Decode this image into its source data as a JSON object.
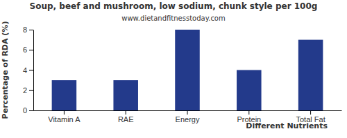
{
  "chart_data": {
    "type": "bar",
    "title": "Soup, beef and mushroom, low sodium, chunk style per 100g",
    "subtitle": "www.dietandfitnesstoday.com",
    "y_label": "Percentage of RDA (%)",
    "x_label": "Different Nutrients",
    "categories": [
      "Vitamin A",
      "RAE",
      "Energy",
      "Protein",
      "Total Fat"
    ],
    "values": [
      3,
      3,
      8,
      4,
      7
    ],
    "color": "#233a8b",
    "ylim": [
      0,
      8
    ],
    "yticks": [
      0,
      2,
      4,
      6,
      8
    ],
    "grid": false
  }
}
